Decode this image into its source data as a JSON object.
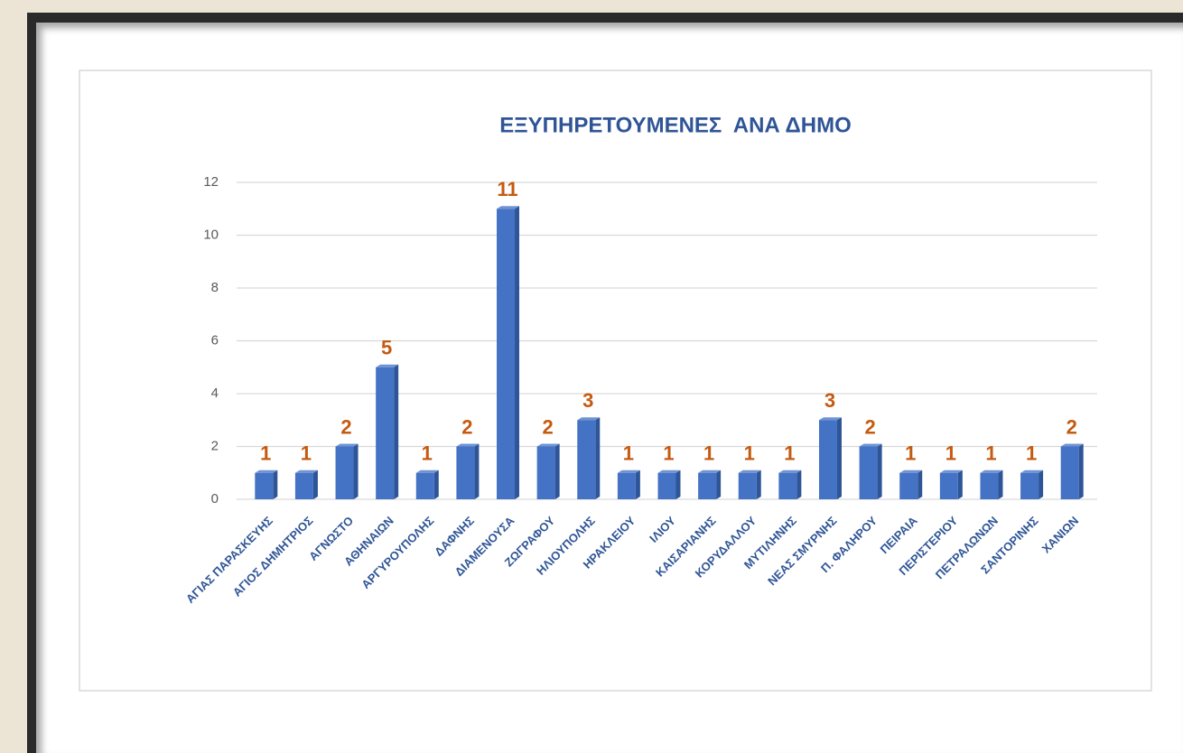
{
  "chart_data": {
    "type": "bar",
    "title": "ΕΞΥΠΗΡΕΤΟΥΜΕΝΕΣ  ΑΝΑ ΔΗΜΟ",
    "categories": [
      "ΑΓΙΑΣ ΠΑΡΑΣΚΕΥΗΣ",
      "ΑΓΙΟΣ ΔΗΜΗΤΡΙΟΣ",
      "ΑΓΝΩΣΤΟ",
      "ΑΘΗΝΑΙΩΝ",
      "ΑΡΓΥΡΟΥΠΟΛΗΣ",
      "ΔΑΦΝΗΣ",
      "ΔΙΑΜΕΝΟΥΣΑ",
      "ΖΩΓΡΑΦΟΥ",
      "ΗΛΙΟΥΠΟΛΗΣ",
      "ΗΡΑΚΛΕΙΟΥ",
      "ΙΛΙΟΥ",
      "ΚΑΙΣΑΡΙΑΝΗΣ",
      "ΚΟΡΥΔΑΛΛΟΥ",
      "ΜΥΤΙΛΗΝΗΣ",
      "ΝΕΑΣ ΣΜΥΡΝΗΣ",
      "Π. ΦΑΛΗΡΟΥ",
      "ΠΕΙΡΑΙΑ",
      "ΠΕΡΙΣΤΕΡΙΟΥ",
      "ΠΕΤΡΑΛΩΝΩΝ",
      "ΣΑΝΤΟΡΙΝΗΣ",
      "ΧΑΝΙΩΝ"
    ],
    "values": [
      1,
      1,
      2,
      5,
      1,
      2,
      11,
      2,
      3,
      1,
      1,
      1,
      1,
      1,
      3,
      2,
      1,
      1,
      1,
      1,
      2
    ],
    "color": "#4472c4",
    "ylim": [
      0,
      12
    ],
    "yticks": [
      0,
      2,
      4,
      6,
      8,
      10,
      12
    ],
    "grid": true
  }
}
